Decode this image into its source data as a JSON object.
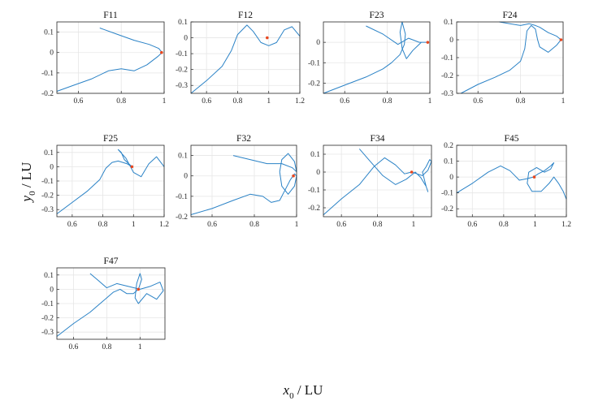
{
  "figure": {
    "ylabel": "y",
    "ylabel_sub": "0",
    "ylabel_unit": " / LU",
    "xlabel": "x",
    "xlabel_sub": "0",
    "xlabel_unit": " / LU",
    "line_color": "#2a82c6",
    "marker_color": "#e8471f",
    "grid": true
  },
  "chart_data": [
    {
      "type": "line",
      "title": "F11",
      "xlim": [
        0.5,
        1.0
      ],
      "ylim": [
        -0.2,
        0.15
      ],
      "xticks": [
        0.6,
        0.8,
        1
      ],
      "yticks": [
        -0.2,
        -0.1,
        0,
        0.1
      ],
      "x": [
        0.7,
        0.78,
        0.86,
        0.93,
        0.975,
        0.99,
        0.97,
        0.92,
        0.86,
        0.8,
        0.74,
        0.66,
        0.58,
        0.5
      ],
      "y": [
        0.12,
        0.09,
        0.06,
        0.04,
        0.02,
        0.0,
        -0.02,
        -0.06,
        -0.09,
        -0.08,
        -0.09,
        -0.13,
        -0.16,
        -0.19
      ],
      "marker": [
        0.988,
        0.0
      ]
    },
    {
      "type": "line",
      "title": "F12",
      "xlim": [
        0.5,
        1.2
      ],
      "ylim": [
        -0.35,
        0.1
      ],
      "xticks": [
        0.6,
        0.8,
        1,
        1.2
      ],
      "yticks": [
        -0.3,
        -0.2,
        -0.1,
        0,
        0.1
      ],
      "x": [
        0.5,
        0.6,
        0.7,
        0.76,
        0.8,
        0.86,
        0.9,
        0.95,
        1.0,
        1.05,
        1.1,
        1.15,
        1.2
      ],
      "y": [
        -0.35,
        -0.27,
        -0.18,
        -0.08,
        0.02,
        0.08,
        0.04,
        -0.03,
        -0.05,
        -0.03,
        0.05,
        0.07,
        0.01
      ],
      "marker": [
        0.99,
        0.0
      ]
    },
    {
      "type": "line",
      "title": "F23",
      "xlim": [
        0.5,
        1.0
      ],
      "ylim": [
        -0.25,
        0.1
      ],
      "xticks": [
        0.6,
        0.8,
        1
      ],
      "yticks": [
        -0.2,
        -0.1,
        0
      ],
      "x": [
        0.5,
        0.6,
        0.7,
        0.78,
        0.82,
        0.86,
        0.88,
        0.885,
        0.87,
        0.86,
        0.87,
        0.89,
        0.92,
        0.96,
        0.99,
        0.95,
        0.9,
        0.85,
        0.78,
        0.7
      ],
      "y": [
        -0.25,
        -0.21,
        -0.17,
        -0.13,
        -0.1,
        -0.06,
        -0.01,
        0.04,
        0.1,
        0.05,
        -0.03,
        -0.08,
        -0.04,
        0.0,
        0.0,
        0.0,
        0.02,
        -0.01,
        0.04,
        0.08
      ],
      "marker": [
        0.99,
        0.0
      ]
    },
    {
      "type": "line",
      "title": "F24",
      "xlim": [
        0.5,
        1.0
      ],
      "ylim": [
        -0.3,
        0.1
      ],
      "xticks": [
        0.6,
        0.8,
        1
      ],
      "yticks": [
        -0.3,
        -0.2,
        -0.1,
        0,
        0.1
      ],
      "x": [
        0.52,
        0.6,
        0.68,
        0.75,
        0.8,
        0.82,
        0.83,
        0.85,
        0.87,
        0.88,
        0.89,
        0.93,
        0.97,
        0.99,
        0.97,
        0.93,
        0.89,
        0.87,
        0.84,
        0.8,
        0.75,
        0.7
      ],
      "y": [
        -0.3,
        -0.25,
        -0.21,
        -0.17,
        -0.12,
        -0.05,
        0.05,
        0.08,
        0.06,
        0.0,
        -0.04,
        -0.07,
        -0.03,
        0.0,
        0.02,
        0.04,
        0.07,
        0.08,
        0.09,
        0.08,
        0.09,
        0.1
      ],
      "marker": [
        0.99,
        0.0
      ]
    },
    {
      "type": "line",
      "title": "F25",
      "xlim": [
        0.5,
        1.2
      ],
      "ylim": [
        -0.35,
        0.15
      ],
      "xticks": [
        0.6,
        0.8,
        1,
        1.2
      ],
      "yticks": [
        -0.3,
        -0.2,
        -0.1,
        0,
        0.1
      ],
      "x": [
        0.5,
        0.6,
        0.7,
        0.78,
        0.82,
        0.86,
        0.9,
        0.93,
        0.96,
        0.99,
        0.94,
        0.92,
        0.9,
        0.95,
        1.0,
        1.05,
        1.1,
        1.15,
        1.2
      ],
      "y": [
        -0.33,
        -0.25,
        -0.17,
        -0.09,
        -0.01,
        0.03,
        0.04,
        0.03,
        0.02,
        0.0,
        0.05,
        0.1,
        0.12,
        0.06,
        -0.04,
        -0.07,
        0.02,
        0.07,
        0.0
      ],
      "marker": [
        0.99,
        0.0
      ]
    },
    {
      "type": "line",
      "title": "F32",
      "xlim": [
        0.5,
        1.0
      ],
      "ylim": [
        -0.2,
        0.15
      ],
      "xticks": [
        0.6,
        0.8,
        1
      ],
      "yticks": [
        -0.2,
        -0.1,
        0,
        0.1
      ],
      "x": [
        0.5,
        0.6,
        0.7,
        0.78,
        0.84,
        0.88,
        0.92,
        0.95,
        0.97,
        0.99,
        1.0,
        0.99,
        0.96,
        0.93,
        0.92,
        0.93,
        0.96,
        0.99,
        1.0,
        0.98,
        0.93,
        0.86,
        0.78,
        0.7
      ],
      "y": [
        -0.19,
        -0.16,
        -0.12,
        -0.09,
        -0.1,
        -0.13,
        -0.12,
        -0.06,
        -0.02,
        0.01,
        0.0,
        -0.05,
        -0.09,
        -0.05,
        0.02,
        0.08,
        0.11,
        0.07,
        0.02,
        0.04,
        0.06,
        0.06,
        0.08,
        0.1
      ],
      "marker": [
        0.985,
        0.0
      ]
    },
    {
      "type": "line",
      "title": "F34",
      "xlim": [
        0.5,
        1.1
      ],
      "ylim": [
        -0.25,
        0.15
      ],
      "xticks": [
        0.6,
        0.8,
        1
      ],
      "yticks": [
        -0.2,
        -0.1,
        0,
        0.1
      ],
      "x": [
        0.5,
        0.6,
        0.7,
        0.78,
        0.84,
        0.9,
        0.95,
        0.99,
        1.02,
        1.05,
        1.08,
        1.1,
        1.09,
        1.07,
        1.05,
        1.07,
        1.08,
        1.07,
        1.04,
        1.01,
        0.96,
        0.9,
        0.83,
        0.76,
        0.7
      ],
      "y": [
        -0.24,
        -0.15,
        -0.07,
        0.03,
        0.08,
        0.04,
        -0.01,
        0.0,
        -0.01,
        -0.02,
        0.01,
        0.06,
        0.07,
        0.03,
        0.0,
        -0.08,
        -0.11,
        -0.08,
        -0.03,
        0.0,
        -0.04,
        -0.07,
        -0.02,
        0.06,
        0.13
      ],
      "marker": [
        0.99,
        0.0
      ]
    },
    {
      "type": "line",
      "title": "F45",
      "xlim": [
        0.5,
        1.2
      ],
      "ylim": [
        -0.25,
        0.2
      ],
      "xticks": [
        0.6,
        0.8,
        1,
        1.2
      ],
      "yticks": [
        -0.2,
        -0.1,
        0,
        0.1,
        0.2
      ],
      "x": [
        0.5,
        0.6,
        0.7,
        0.78,
        0.84,
        0.9,
        0.95,
        0.99,
        1.02,
        1.06,
        1.1,
        1.12,
        1.1,
        1.06,
        1.01,
        0.96,
        0.95,
        0.98,
        1.04,
        1.09,
        1.12,
        1.15,
        1.18,
        1.2
      ],
      "y": [
        -0.1,
        -0.04,
        0.03,
        0.07,
        0.04,
        -0.02,
        -0.01,
        0.0,
        0.02,
        0.04,
        0.07,
        0.09,
        0.05,
        0.03,
        0.06,
        0.03,
        -0.04,
        -0.09,
        -0.09,
        -0.04,
        0.0,
        -0.04,
        -0.09,
        -0.14
      ],
      "marker": [
        0.995,
        0.0
      ]
    },
    {
      "type": "line",
      "title": "F47",
      "xlim": [
        0.5,
        1.15
      ],
      "ylim": [
        -0.35,
        0.15
      ],
      "xticks": [
        0.6,
        0.8,
        1
      ],
      "yticks": [
        -0.3,
        -0.2,
        -0.1,
        0,
        0.1
      ],
      "x": [
        0.5,
        0.6,
        0.7,
        0.78,
        0.84,
        0.88,
        0.92,
        0.96,
        0.99,
        1.01,
        1.0,
        0.98,
        0.97,
        0.99,
        1.04,
        1.1,
        1.14,
        1.12,
        1.06,
        1.0,
        0.93,
        0.86,
        0.8,
        0.75,
        0.7
      ],
      "y": [
        -0.33,
        -0.24,
        -0.16,
        -0.08,
        -0.02,
        0.0,
        -0.03,
        -0.03,
        0.0,
        0.07,
        0.11,
        0.04,
        -0.06,
        -0.1,
        -0.03,
        -0.07,
        -0.01,
        0.05,
        0.02,
        0.0,
        0.02,
        0.04,
        0.01,
        0.06,
        0.11
      ],
      "marker": [
        0.99,
        0.0
      ]
    }
  ]
}
